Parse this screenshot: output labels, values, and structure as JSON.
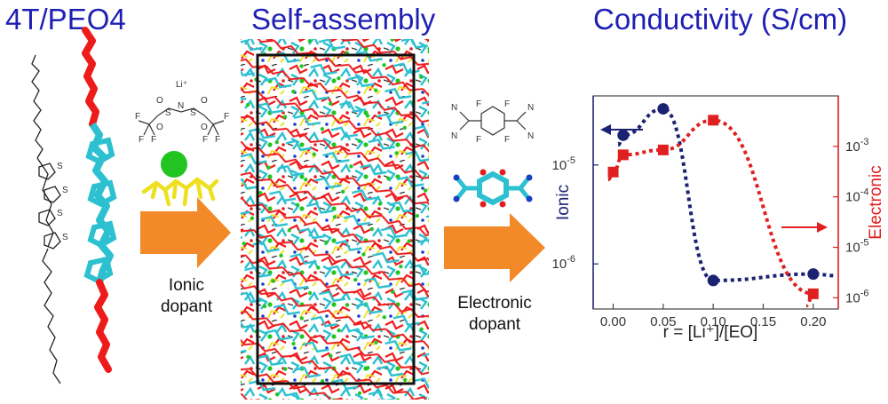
{
  "titles": {
    "molecule": "4T/PEO4",
    "assembly": "Self-assembly",
    "conductivity": "Conductivity (S/cm)"
  },
  "dopants": {
    "ionic_line1": "Ionic",
    "ionic_line2": "dopant",
    "electronic_line1": "Electronic",
    "electronic_line2": "dopant"
  },
  "chem_labels": {
    "li": "Li⁺",
    "f": "F",
    "s": "S",
    "o": "O",
    "n": "N",
    "thiophene_s": "S"
  },
  "colors": {
    "title_blue": "#1f1fb4",
    "ionic_navy": "#1c2272",
    "electronic_red": "#e02020",
    "arrow_orange": "#f28a2a",
    "chain_red": "#ee1b1b",
    "backbone_cyan": "#2cc0d0",
    "dopant_yellow": "#eee020",
    "li_green": "#22c422"
  },
  "chart_data": {
    "type": "scatter",
    "xlabel": "r = [Li⁺]/[EO]",
    "x_ticks": [
      "0.00",
      "0.05",
      "0.10",
      "0.15",
      "0.20"
    ],
    "xlim": [
      -0.02,
      0.225
    ],
    "left_axis": {
      "label": "Ionic",
      "scale": "log",
      "ylim": [
        3.5e-07,
        5e-05
      ],
      "ticks": [
        {
          "base": "10",
          "exp": "-5",
          "value": 1e-05
        },
        {
          "base": "10",
          "exp": "-6",
          "value": 1e-06
        }
      ]
    },
    "right_axis": {
      "label": "Electronic",
      "scale": "log",
      "ylim": [
        6e-07,
        0.01
      ],
      "ticks": [
        {
          "base": "10",
          "exp": "-3",
          "value": 0.001
        },
        {
          "base": "10",
          "exp": "-4",
          "value": 0.0001
        },
        {
          "base": "10",
          "exp": "-5",
          "value": 1e-05
        },
        {
          "base": "10",
          "exp": "-6",
          "value": 1e-06
        }
      ]
    },
    "series": [
      {
        "axis": "left",
        "marker": "circle",
        "color": "#1c2272",
        "x": [
          0.01,
          0.05,
          0.1,
          0.2
        ],
        "y": [
          2e-05,
          3.7e-05,
          6.8e-07,
          7.9e-07
        ]
      },
      {
        "axis": "right",
        "marker": "square",
        "color": "#e02020",
        "x": [
          0.0,
          0.01,
          0.05,
          0.1,
          0.2
        ],
        "y": [
          0.00031,
          0.00068,
          0.00085,
          0.0033,
          1.2e-06
        ]
      }
    ]
  }
}
